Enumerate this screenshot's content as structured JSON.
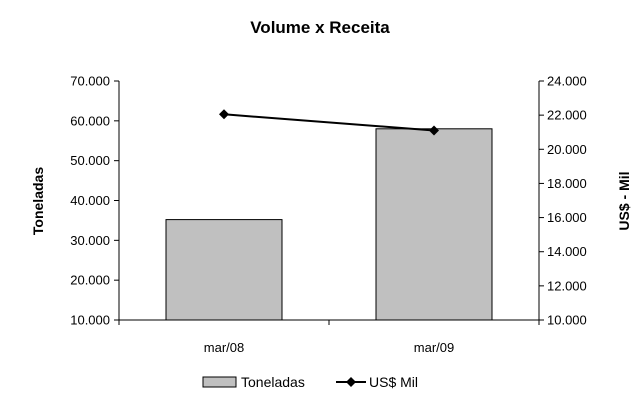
{
  "chart_data": {
    "type": "bar",
    "title": "Volume x Receita",
    "categories": [
      "mar/08",
      "mar/09"
    ],
    "series": [
      {
        "name": "Toneladas",
        "type": "bar",
        "axis": "left",
        "values": [
          35200,
          58000
        ],
        "color": "#C0C0C0"
      },
      {
        "name": "US$ Mil",
        "type": "line",
        "axis": "right",
        "values": [
          22050,
          21100
        ],
        "color": "#000000"
      }
    ],
    "ylabel": "Toneladas",
    "y2label": "US$ - Mil",
    "ylim": [
      10000,
      70000
    ],
    "y2lim": [
      10000,
      24000
    ],
    "yticks": [
      "10.000",
      "20.000",
      "30.000",
      "40.000",
      "50.000",
      "60.000",
      "70.000"
    ],
    "y2ticks": [
      "10.000",
      "12.000",
      "14.000",
      "16.000",
      "18.000",
      "20.000",
      "22.000",
      "24.000"
    ],
    "grid": false,
    "legend_position": "bottom"
  }
}
